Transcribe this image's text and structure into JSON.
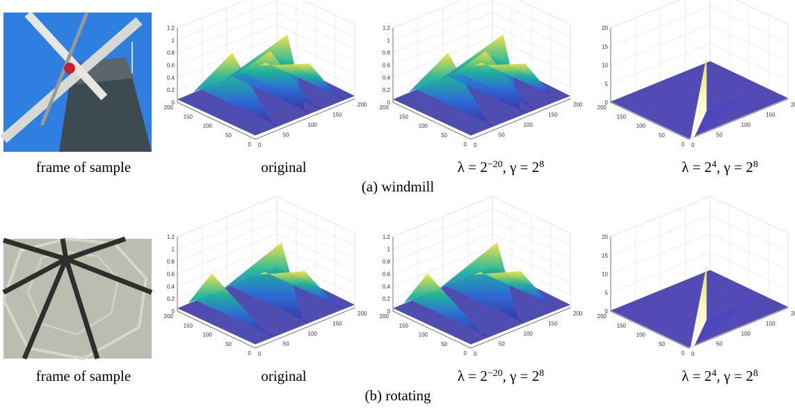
{
  "figure": {
    "rows": [
      {
        "label": "(a) windmill",
        "photo_caption": "frame of sample",
        "panels": [
          {
            "caption": [
              "original"
            ],
            "zlim": [
              0,
              1.2
            ],
            "zticks": [
              0,
              0.2,
              0.4,
              0.6,
              0.8,
              1,
              1.2
            ],
            "xlim": [
              0,
              200
            ],
            "xticks": [
              0,
              50,
              100,
              150,
              200
            ],
            "ylim": [
              0,
              200
            ],
            "yticks": [
              0,
              50,
              100,
              150,
              200
            ]
          },
          {
            "caption": [
              "λ = 2",
              "−20",
              ", γ = 2",
              "8"
            ],
            "zlim": [
              0,
              1.2
            ],
            "zticks": [
              0,
              0.2,
              0.4,
              0.6,
              0.8,
              1,
              1.2
            ],
            "xlim": [
              0,
              200
            ],
            "xticks": [
              0,
              50,
              100,
              150,
              200
            ],
            "ylim": [
              0,
              200
            ],
            "yticks": [
              0,
              50,
              100,
              150,
              200
            ]
          },
          {
            "caption": [
              "λ = 2",
              "4",
              ", γ = 2",
              "8"
            ],
            "zlim": [
              0,
              20
            ],
            "zticks": [
              0,
              5,
              10,
              15,
              20
            ],
            "xlim": [
              0,
              200
            ],
            "xticks": [
              0,
              50,
              100,
              150,
              200
            ],
            "ylim": [
              0,
              200
            ],
            "yticks": [
              0,
              50,
              100,
              150,
              200
            ]
          }
        ]
      },
      {
        "label": "(b) rotating",
        "photo_caption": "frame of sample",
        "panels": [
          {
            "caption": [
              "original"
            ],
            "zlim": [
              0,
              1.2
            ],
            "zticks": [
              0,
              0.2,
              0.4,
              0.6,
              0.8,
              1,
              1.2
            ],
            "xlim": [
              0,
              200
            ],
            "xticks": [
              0,
              50,
              100,
              150,
              200
            ],
            "ylim": [
              0,
              200
            ],
            "yticks": [
              0,
              50,
              100,
              150,
              200
            ]
          },
          {
            "caption": [
              "λ = 2",
              "−20",
              ", γ = 2",
              "8"
            ],
            "zlim": [
              0,
              1.2
            ],
            "zticks": [
              0,
              0.2,
              0.4,
              0.6,
              0.8,
              1,
              1.2
            ],
            "xlim": [
              0,
              200
            ],
            "xticks": [
              0,
              50,
              100,
              150,
              200
            ],
            "ylim": [
              0,
              200
            ],
            "yticks": [
              0,
              50,
              100,
              150,
              200
            ]
          },
          {
            "caption": [
              "λ = 2",
              "4",
              ", γ = 2",
              "8"
            ],
            "zlim": [
              0,
              20
            ],
            "zticks": [
              0,
              5,
              10,
              15,
              20
            ],
            "xlim": [
              0,
              200
            ],
            "xticks": [
              0,
              50,
              100,
              150,
              200
            ],
            "ylim": [
              0,
              200
            ],
            "yticks": [
              0,
              50,
              100,
              150,
              200
            ]
          }
        ]
      }
    ]
  }
}
